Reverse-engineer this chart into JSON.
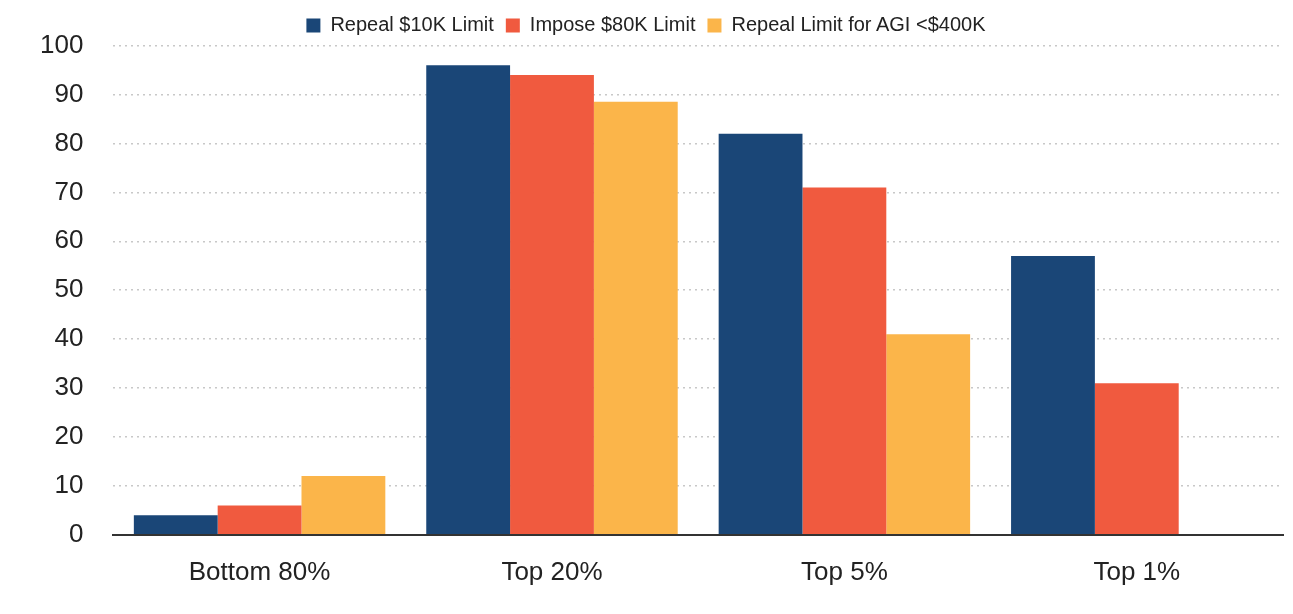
{
  "chart_data": {
    "type": "bar",
    "categories": [
      "Bottom 80%",
      "Top 20%",
      "Top 5%",
      "Top 1%"
    ],
    "series": [
      {
        "name": "Repeal $10K Limit",
        "color": "#1a4677",
        "values": [
          4,
          96,
          82,
          57
        ]
      },
      {
        "name": "Impose $80K Limit",
        "color": "#f05a3f",
        "values": [
          6,
          94,
          71,
          31
        ]
      },
      {
        "name": "Repeal Limit for AGI <$400K",
        "color": "#fbb54a",
        "values": [
          12,
          88.5,
          41,
          null
        ]
      }
    ],
    "ylim": [
      0,
      100
    ],
    "yticks": [
      0,
      10,
      20,
      30,
      40,
      50,
      60,
      70,
      80,
      90,
      100
    ],
    "grid": "y",
    "legend": "top"
  }
}
